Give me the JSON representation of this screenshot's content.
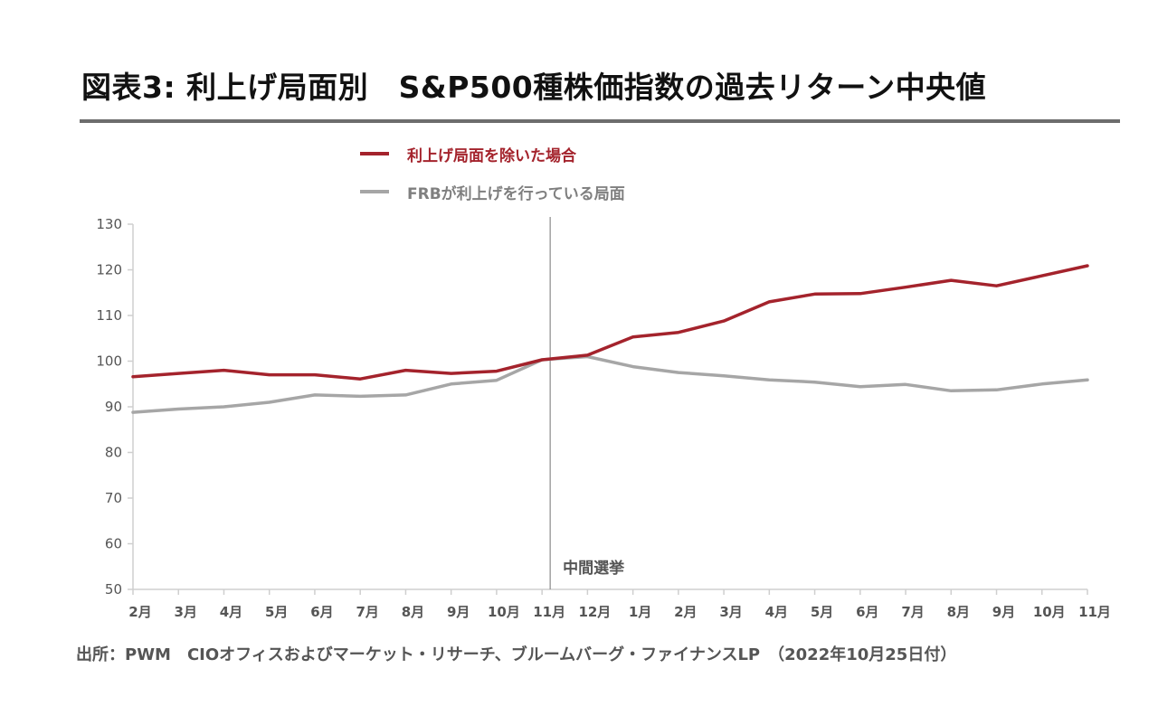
{
  "title": "図表3: 利上げ局面別　S&P500種株価指数の過去リターン中央値",
  "source": "出所：PWM　CIOオフィスおよびマーケット・リサーチ、ブルームバーグ・ファイナンスLP　（2022年10月25日付）",
  "colors": {
    "red": "#a4232c",
    "gray": "#a6a6a6",
    "axis": "#cfcfcf"
  },
  "chart_data": {
    "type": "line",
    "title": "図表3: 利上げ局面別　S&P500種株価指数の過去リターン中央値",
    "xlabel": "",
    "ylabel": "",
    "ylim": [
      50,
      130
    ],
    "yticks": [
      50,
      60,
      70,
      80,
      90,
      100,
      110,
      120,
      130
    ],
    "categories": [
      "2月",
      "3月",
      "4月",
      "5月",
      "6月",
      "7月",
      "8月",
      "9月",
      "10月",
      "11月",
      "12月",
      "1月",
      "2月",
      "3月",
      "4月",
      "5月",
      "6月",
      "7月",
      "8月",
      "9月",
      "10月",
      "11月"
    ],
    "series": [
      {
        "name": "利上げ局面を除いた場合",
        "color": "#a4232c",
        "values": [
          96.6,
          97.3,
          98.0,
          97.0,
          97.0,
          96.1,
          98.0,
          97.3,
          97.8,
          100.3,
          101.3,
          105.3,
          106.3,
          108.8,
          113.0,
          114.7,
          114.8,
          116.2,
          117.7,
          116.5,
          118.7,
          120.9
        ]
      },
      {
        "name": "FRBが利上げを行っている局面",
        "color": "#a6a6a6",
        "values": [
          88.8,
          89.5,
          90.0,
          91.0,
          92.6,
          92.3,
          92.6,
          95.0,
          95.8,
          100.3,
          101.0,
          98.8,
          97.5,
          96.8,
          95.9,
          95.4,
          94.4,
          94.9,
          93.5,
          93.7,
          95.0,
          95.9
        ]
      }
    ],
    "annotations": [
      {
        "label": "中間選挙",
        "at_category_index": 9
      }
    ],
    "grid": false,
    "legend": "top"
  }
}
